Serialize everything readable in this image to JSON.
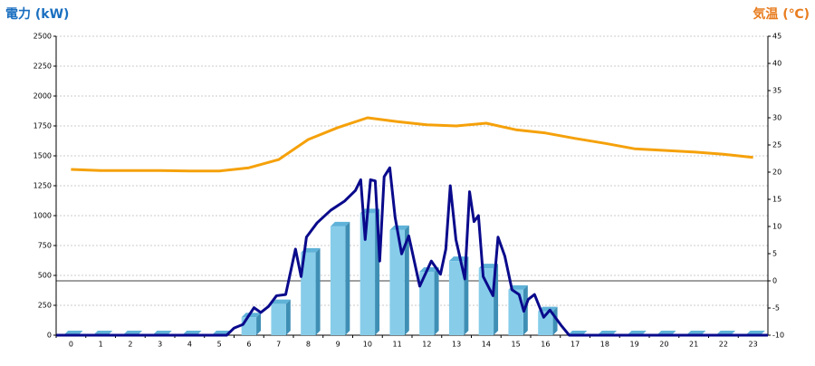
{
  "chart_data": {
    "type": "combo",
    "ylabel": "電力 (kW)",
    "y2label": "気温 (℃)",
    "ylabel_color": "#1a6fc0",
    "y2label_color": "#e87c1e",
    "categories": [
      "0",
      "1",
      "2",
      "3",
      "4",
      "5",
      "6",
      "7",
      "8",
      "9",
      "10",
      "11",
      "12",
      "13",
      "14",
      "15",
      "16",
      "17",
      "18",
      "19",
      "20",
      "21",
      "22",
      "23"
    ],
    "ylim": [
      0,
      2500
    ],
    "yticks": [
      0,
      250,
      500,
      750,
      1000,
      1250,
      1500,
      1750,
      2000,
      2250,
      2500
    ],
    "y2lim": [
      -10,
      45
    ],
    "y2ticks": [
      -10,
      -5,
      0,
      5,
      10,
      15,
      20,
      25,
      30,
      35,
      40,
      45
    ],
    "grid": true,
    "series": [
      {
        "type": "bar",
        "color": "#87cdea",
        "values": [
          0,
          0,
          0,
          0,
          0,
          0,
          150,
          260,
          690,
          910,
          1020,
          880,
          530,
          620,
          560,
          380,
          200,
          0,
          0,
          0,
          0,
          0,
          0,
          0
        ]
      },
      {
        "type": "line",
        "color": "#0a0a8c",
        "x": [
          -0.49,
          5.25,
          5.5,
          5.8,
          6.17,
          6.4,
          6.66,
          6.93,
          7.24,
          7.57,
          7.76,
          7.94,
          8.3,
          8.76,
          9.22,
          9.59,
          9.77,
          9.92,
          10.1,
          10.26,
          10.41,
          10.56,
          10.75,
          10.93,
          11.15,
          11.39,
          11.76,
          12.15,
          12.46,
          12.64,
          12.79,
          12.98,
          13.28,
          13.44,
          13.59,
          13.74,
          13.9,
          14.23,
          14.4,
          14.63,
          14.87,
          15.11,
          15.27,
          15.42,
          15.63,
          15.94,
          16.15,
          16.55,
          16.8,
          23.5
        ],
        "values": [
          0,
          0,
          60,
          90,
          230,
          190,
          240,
          330,
          340,
          720,
          490,
          820,
          940,
          1045,
          1120,
          1210,
          1300,
          800,
          1300,
          1290,
          620,
          1325,
          1400,
          985,
          680,
          830,
          410,
          620,
          510,
          720,
          1250,
          800,
          470,
          1200,
          950,
          1000,
          490,
          330,
          820,
          660,
          380,
          340,
          200,
          300,
          340,
          150,
          210,
          75,
          0,
          0
        ]
      },
      {
        "type": "line",
        "axis": "y2",
        "color": "#f5a10a",
        "values": [
          20.5,
          20.3,
          20.3,
          20.3,
          20.2,
          20.2,
          20.8,
          22.3,
          26,
          28.2,
          30,
          29.3,
          28.7,
          28.5,
          29,
          27.8,
          27.2,
          26.2,
          25.3,
          24.3,
          24,
          23.7,
          23.3,
          22.7
        ]
      }
    ]
  }
}
